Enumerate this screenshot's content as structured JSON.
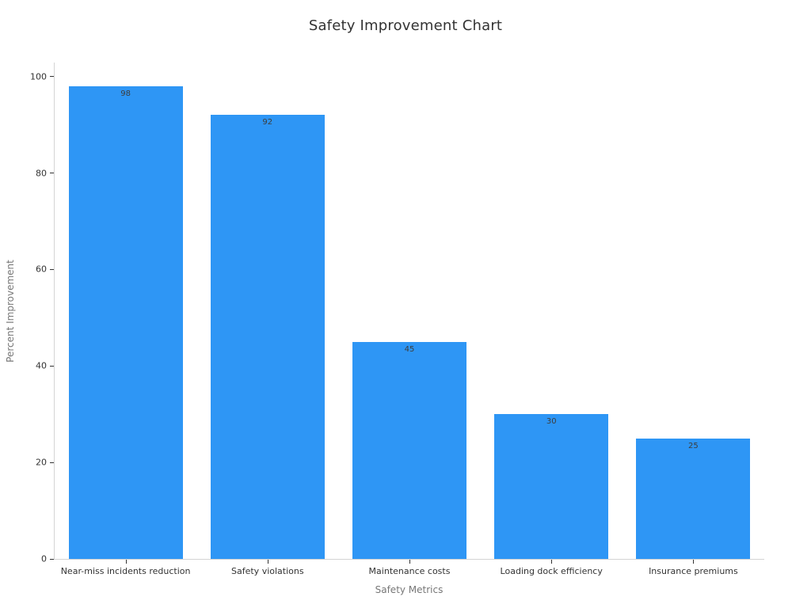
{
  "figure": {
    "background": "#ffffff"
  },
  "chart_data": {
    "type": "bar",
    "title": "Safety Improvement Chart",
    "xlabel": "Safety Metrics",
    "ylabel": "Percent Improvement",
    "categories": [
      "Near-miss incidents reduction",
      "Safety violations",
      "Maintenance costs",
      "Loading dock efficiency",
      "Insurance premiums"
    ],
    "values": [
      98,
      92,
      45,
      30,
      25
    ],
    "value_labels": [
      "98",
      "92",
      "45",
      "30",
      "25"
    ],
    "value_labels_position": "inside-top",
    "bar_color": "#2E96F5",
    "value_label_color": "#3d3d3d",
    "tick_label_color": "#333333",
    "axis_title_color": "#777777",
    "spine_color": "#d4d4d4",
    "yticks": [
      0,
      20,
      40,
      60,
      80,
      100
    ],
    "ylim": [
      0,
      102.9
    ],
    "grid": false,
    "legend_position": "none"
  }
}
